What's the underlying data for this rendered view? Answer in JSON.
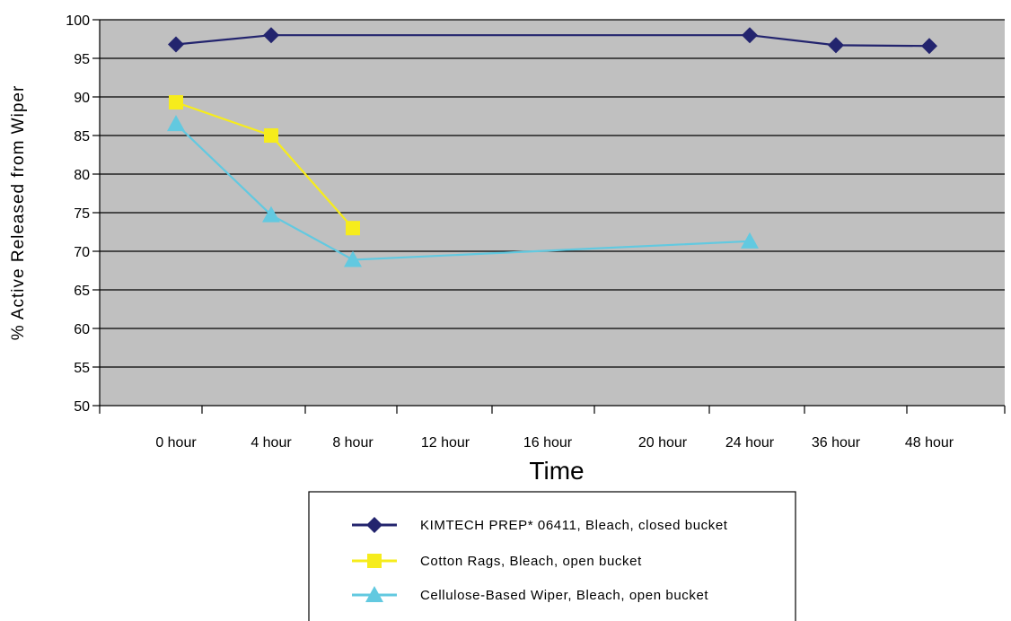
{
  "chart_data": {
    "type": "line",
    "xlabel": "Time",
    "ylabel": "% Active Released from Wiper",
    "ylim": [
      50,
      100
    ],
    "ytick_step": 5,
    "categories": [
      "0 hour",
      "4 hour",
      "8 hour",
      "12 hour",
      "16 hour",
      "20 hour",
      "24 hour",
      "36 hour",
      "48 hour"
    ],
    "series": [
      {
        "name": "KIMTECH PREP* 06411, Bleach, closed bucket",
        "color": "#23246e",
        "marker": "diamond",
        "points": [
          {
            "x": "0 hour",
            "y": 96.8
          },
          {
            "x": "4 hour",
            "y": 98.0
          },
          {
            "x": "24 hour",
            "y": 98.0
          },
          {
            "x": "36 hour",
            "y": 96.7
          },
          {
            "x": "48 hour",
            "y": 96.6
          }
        ]
      },
      {
        "name": "Cotton Rags, Bleach, open bucket",
        "color": "#f6ec1c",
        "marker": "square",
        "points": [
          {
            "x": "0 hour",
            "y": 89.3
          },
          {
            "x": "4 hour",
            "y": 85.0
          },
          {
            "x": "8 hour",
            "y": 73.0
          }
        ]
      },
      {
        "name": "Cellulose-Based Wiper, Bleach, open bucket",
        "color": "#62c9e0",
        "marker": "triangle",
        "points": [
          {
            "x": "0 hour",
            "y": 86.5
          },
          {
            "x": "4 hour",
            "y": 74.7
          },
          {
            "x": "8 hour",
            "y": 68.9
          },
          {
            "x": "24 hour",
            "y": 71.3
          }
        ]
      }
    ],
    "plot_background": "#c0c0c0",
    "grid": true,
    "legend_position": "bottom-center"
  }
}
